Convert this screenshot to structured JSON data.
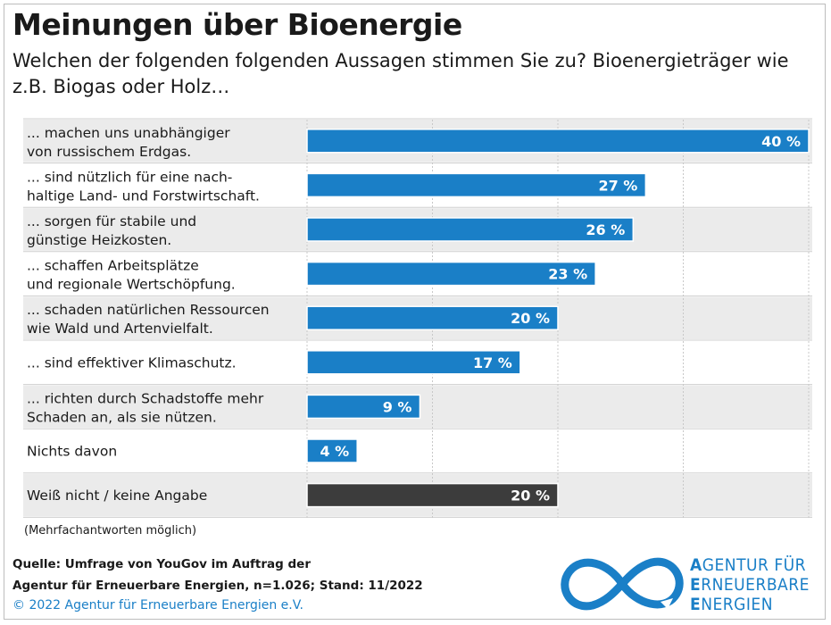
{
  "header": {
    "title": "Meinungen über Bioenergie",
    "subtitle": "Welchen der folgenden folgenden Aussagen stimmen Sie zu? Bioenergieträger wie z.B. Biogas oder Holz…"
  },
  "chart_data": {
    "type": "bar",
    "orientation": "horizontal",
    "categories": [
      "... machen uns unabhängiger\nvon russischem Erdgas.",
      "... sind nützlich für eine nach-\nhaltige Land- und Forstwirtschaft.",
      "... sorgen für stabile und\ngünstige Heizkosten.",
      "... schaffen Arbeitsplätze\nund regionale Wertschöpfung.",
      "... schaden natürlichen Ressourcen\nwie Wald und Artenvielfalt.",
      "... sind effektiver Klimaschutz.",
      "... richten durch Schadstoffe mehr\nSchaden an, als sie nützen.",
      "Nichts davon",
      "Weiß nicht / keine Angabe"
    ],
    "values": [
      40,
      27,
      26,
      23,
      20,
      17,
      9,
      4,
      20
    ],
    "value_labels": [
      "40 %",
      "27 %",
      "26 %",
      "23 %",
      "20 %",
      "17 %",
      "9 %",
      "4 %",
      "20 %"
    ],
    "xlim": [
      0,
      40
    ],
    "grid": true,
    "colors": {
      "bar": "#1a7fc7",
      "bar_last": "#3c3c3c",
      "row_alt": "#ebebeb",
      "row": "#ffffff",
      "grid": "#c8c8c8"
    }
  },
  "footer": {
    "note": "(Mehrfachantworten möglich)",
    "source_line1": "Quelle: Umfrage von YouGov im Auftrag der",
    "source_line2": "Agentur für Erneuerbare Energien, n=1.026; Stand: 11/2022",
    "copyright": "© 2022 Agentur für Erneuerbare Energien e.V."
  },
  "logo": {
    "icon": "infinity-loop-icon",
    "line1_initial": "A",
    "line1_rest": "GENTUR FÜR",
    "line2_initial": "E",
    "line2_rest": "RNEUERBARE",
    "line3_initial": "E",
    "line3_rest": "NERGIEN",
    "color": "#1a7fc7"
  }
}
